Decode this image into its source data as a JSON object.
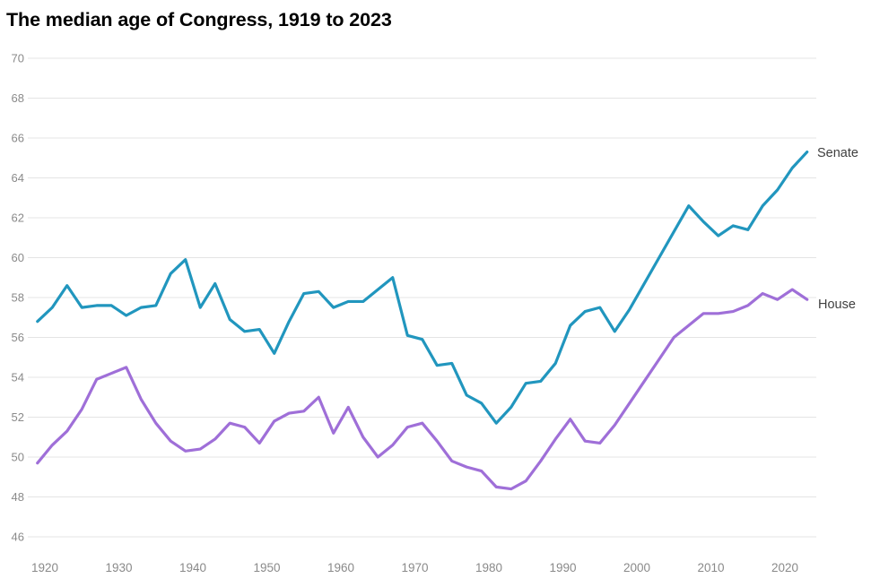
{
  "page": {
    "background": "#ffffff"
  },
  "chart_data": {
    "type": "line",
    "title": "The median age of Congress, 1919 to 2023",
    "xlabel": "",
    "ylabel": "",
    "x": [
      1919,
      1921,
      1923,
      1925,
      1927,
      1929,
      1931,
      1933,
      1935,
      1937,
      1939,
      1941,
      1943,
      1945,
      1947,
      1949,
      1951,
      1953,
      1955,
      1957,
      1959,
      1961,
      1963,
      1965,
      1967,
      1969,
      1971,
      1973,
      1975,
      1977,
      1979,
      1981,
      1983,
      1985,
      1987,
      1989,
      1991,
      1993,
      1995,
      1997,
      1999,
      2001,
      2003,
      2005,
      2007,
      2009,
      2011,
      2013,
      2015,
      2017,
      2019,
      2021,
      2023
    ],
    "series": [
      {
        "name": "Senate",
        "color": "#2196be",
        "values": [
          56.8,
          57.5,
          58.6,
          57.5,
          57.6,
          57.6,
          57.1,
          57.5,
          57.6,
          59.2,
          59.9,
          57.5,
          58.7,
          56.9,
          56.3,
          56.4,
          55.2,
          56.8,
          58.2,
          58.3,
          57.5,
          57.8,
          57.8,
          58.4,
          59.0,
          56.1,
          55.9,
          54.6,
          54.7,
          53.1,
          52.7,
          51.7,
          52.5,
          53.7,
          53.8,
          54.7,
          56.6,
          57.3,
          57.5,
          56.3,
          57.4,
          58.7,
          60.0,
          61.3,
          62.6,
          61.8,
          61.1,
          61.6,
          61.4,
          62.6,
          63.4,
          64.5,
          65.3
        ]
      },
      {
        "name": "House",
        "color": "#9f6fd8",
        "values": [
          49.7,
          50.6,
          51.3,
          52.4,
          53.9,
          54.2,
          54.5,
          52.9,
          51.7,
          50.8,
          50.3,
          50.4,
          50.9,
          51.7,
          51.5,
          50.7,
          51.8,
          52.2,
          52.3,
          53.0,
          51.2,
          52.5,
          51.0,
          50.0,
          50.6,
          51.5,
          51.7,
          50.8,
          49.8,
          49.5,
          49.3,
          48.5,
          48.4,
          48.8,
          49.8,
          50.9,
          51.9,
          50.8,
          50.7,
          51.6,
          52.7,
          53.8,
          54.9,
          56.0,
          56.6,
          57.2,
          57.2,
          57.3,
          57.6,
          58.2,
          57.9,
          58.4,
          57.9
        ]
      }
    ],
    "x_ticks": [
      1920,
      1930,
      1940,
      1950,
      1960,
      1970,
      1980,
      1990,
      2000,
      2010,
      2020
    ],
    "y_ticks": [
      70,
      68,
      66,
      64,
      62,
      60,
      58,
      56,
      54,
      52,
      50,
      48,
      46
    ],
    "xlim": [
      1919,
      2023
    ],
    "ylim": [
      46,
      70
    ],
    "grid": "horizontal",
    "legend_position": "end-of-line-labels",
    "styles": {
      "grid_color": "#e4e4e4",
      "tick_label_color": "#8a8a8a",
      "series_label_color": "#3f3f3f",
      "title_color": "#000000",
      "line_width": 3.2
    }
  }
}
